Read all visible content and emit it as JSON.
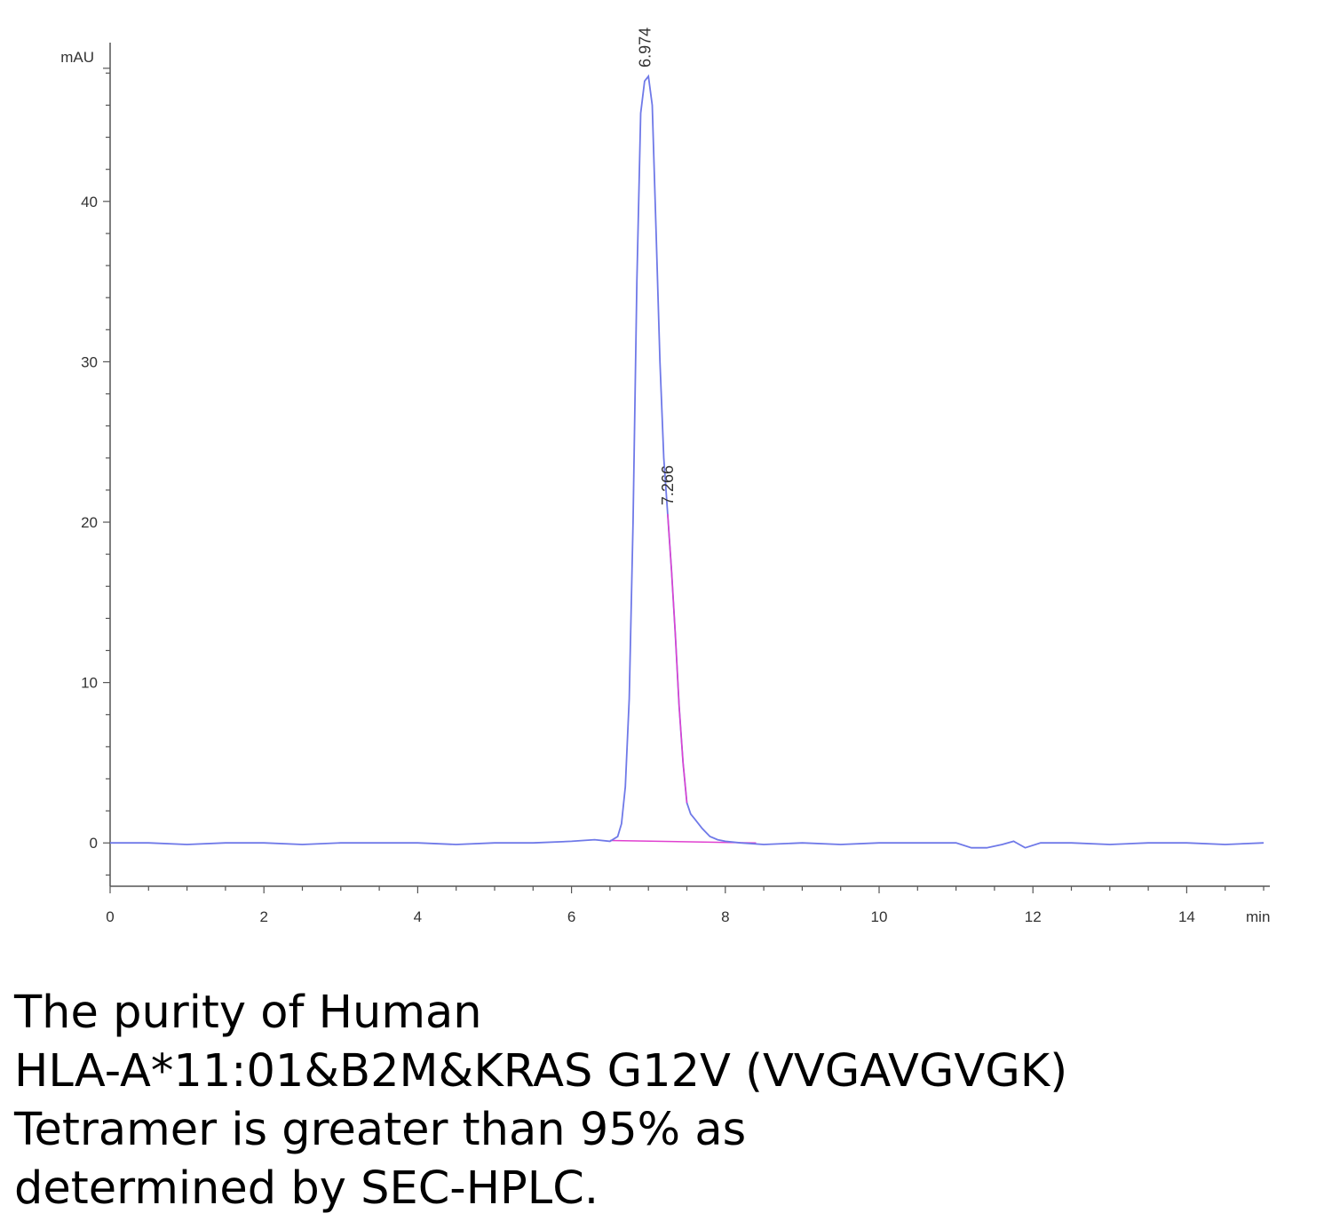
{
  "chart_data": {
    "type": "line",
    "title": "",
    "xlabel": "min",
    "ylabel": "mAU",
    "xlim": [
      0,
      15
    ],
    "ylim": [
      -2.7,
      49.9
    ],
    "x_ticks": [
      0,
      2,
      4,
      6,
      8,
      10,
      12,
      14
    ],
    "y_ticks": [
      0,
      10,
      20,
      30,
      40
    ],
    "grid": false,
    "series": [
      {
        "color": "#6f79e8",
        "x": [
          0,
          0.5,
          1.0,
          1.5,
          2.0,
          2.5,
          3.0,
          3.5,
          4.0,
          4.5,
          5.0,
          5.5,
          6.0,
          6.3,
          6.5,
          6.6,
          6.65,
          6.7,
          6.75,
          6.8,
          6.85,
          6.9,
          6.95,
          7.0,
          7.05,
          7.1,
          7.15,
          7.2,
          7.25,
          7.3,
          7.35,
          7.4,
          7.45,
          7.5,
          7.55,
          7.6,
          7.7,
          7.8,
          7.9,
          8.0,
          8.2,
          8.5,
          9.0,
          9.5,
          10.0,
          10.5,
          11.0,
          11.2,
          11.4,
          11.6,
          11.75,
          11.9,
          12.1,
          12.5,
          13.0,
          13.5,
          14.0,
          14.5,
          15.0
        ],
        "y": [
          0,
          0,
          -0.1,
          0,
          0,
          -0.1,
          0,
          0,
          0,
          -0.1,
          0,
          0,
          0.1,
          0.2,
          0.1,
          0.4,
          1.2,
          3.5,
          9,
          20,
          35,
          45.5,
          47.5,
          47.8,
          46,
          38,
          30,
          24,
          20.5,
          17,
          13,
          8.5,
          5,
          2.5,
          1.8,
          1.5,
          0.9,
          0.4,
          0.2,
          0.1,
          0,
          -0.1,
          0,
          -0.1,
          0,
          0,
          0,
          -0.3,
          -0.3,
          -0.1,
          0.1,
          -0.3,
          0,
          0,
          -0.1,
          0,
          0,
          -0.1,
          0
        ]
      }
    ],
    "baseline": {
      "color": "#e040d0",
      "x": [
        6.5,
        8.4
      ],
      "y": [
        0.15,
        0
      ]
    },
    "peak_labels": [
      "6.974",
      "7.266"
    ],
    "peak_label_x": [
      6.974,
      7.266
    ]
  },
  "caption": {
    "line1": "The purity of Human",
    "line2": "HLA-A*11:01&B2M&KRAS G12V (VVGAVGVGK)",
    "line3": "Tetramer is greater than 95% as",
    "line4": "determined by SEC-HPLC."
  }
}
